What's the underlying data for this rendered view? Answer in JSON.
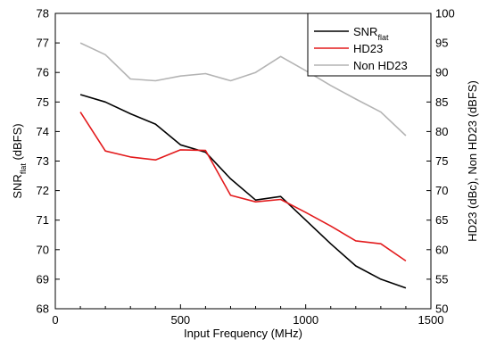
{
  "chart_data": {
    "type": "line",
    "xlabel": "Input Frequency (MHz)",
    "ylabel_left": {
      "main": "SNR",
      "sub": "flat",
      "unit": " (dBFS)"
    },
    "ylabel_right": "HD23 (dBc), Non HD23 (dBFS)",
    "xlim": [
      0,
      1500
    ],
    "ylim_left": [
      68,
      78
    ],
    "ylim_right": [
      50,
      100
    ],
    "x_ticks": [
      "0",
      "500",
      "1000",
      "1500"
    ],
    "left_ticks": [
      "68",
      "69",
      "70",
      "71",
      "72",
      "73",
      "74",
      "75",
      "76",
      "77",
      "78"
    ],
    "right_ticks": [
      "50",
      "55",
      "60",
      "65",
      "70",
      "75",
      "80",
      "85",
      "90",
      "95",
      "100"
    ],
    "legend_position": "top-right",
    "grid": false,
    "series": [
      {
        "name": "SNR",
        "name_sub": "flat",
        "axis": "left",
        "color": "#000000",
        "x": [
          100,
          200,
          300,
          400,
          500,
          600,
          700,
          800,
          900,
          1000,
          1100,
          1200,
          1300,
          1400
        ],
        "y": [
          75.25,
          75.0,
          74.6,
          74.25,
          73.55,
          73.3,
          72.4,
          71.68,
          71.8,
          71.0,
          70.2,
          69.45,
          69.0,
          68.7
        ]
      },
      {
        "name": "HD23",
        "axis": "right",
        "color": "#e31a1c",
        "x": [
          100,
          200,
          300,
          400,
          500,
          600,
          700,
          800,
          900,
          1000,
          1100,
          1200,
          1300,
          1400
        ],
        "y": [
          83.3,
          76.7,
          75.7,
          75.2,
          76.9,
          76.8,
          69.2,
          68.1,
          68.5,
          66.3,
          64.0,
          61.5,
          61.0,
          58.1
        ]
      },
      {
        "name": "Non HD23",
        "axis": "right",
        "color": "#b4b4b4",
        "x": [
          100,
          200,
          300,
          400,
          500,
          600,
          700,
          800,
          900,
          1000,
          1100,
          1200,
          1300,
          1400
        ],
        "y": [
          95.0,
          93.0,
          88.9,
          88.6,
          89.4,
          89.8,
          88.6,
          90.0,
          92.7,
          90.3,
          87.8,
          85.5,
          83.3,
          79.3
        ]
      }
    ]
  }
}
